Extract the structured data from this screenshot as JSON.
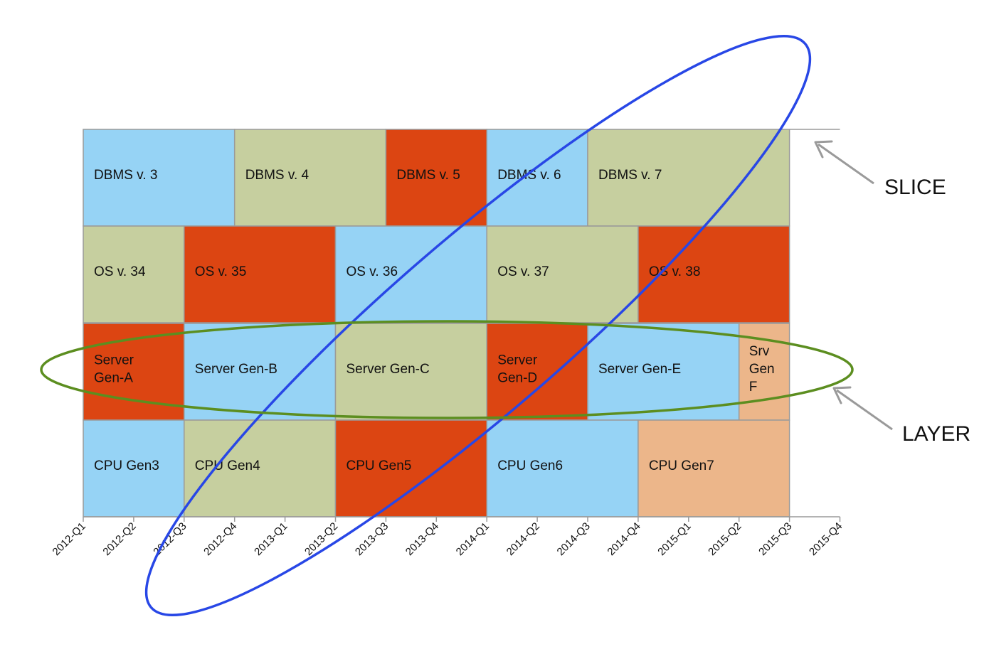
{
  "colors": {
    "blue": "#96d3f5",
    "olive": "#c6cf9f",
    "red": "#dc4512",
    "peach": "#ecb68a",
    "grid": "#9a9a9a",
    "slice_ellipse": "#2847e6",
    "layer_ellipse": "#5c8e20",
    "arrow": "#9a9a9a"
  },
  "chart_data": {
    "type": "table",
    "x_ticks": [
      "2012-Q1",
      "2012-Q2",
      "2012-Q3",
      "2012-Q4",
      "2013-Q1",
      "2013-Q2",
      "2013-Q3",
      "2013-Q4",
      "2014-Q1",
      "2014-Q2",
      "2014-Q3",
      "2014-Q4",
      "2015-Q1",
      "2015-Q2",
      "2015-Q3",
      "2015-Q4"
    ],
    "rows": [
      {
        "name": "DBMS",
        "blocks": [
          {
            "label": [
              "DBMS v. 3"
            ],
            "start": 0,
            "end": 3,
            "color": "blue"
          },
          {
            "label": [
              "DBMS v. 4"
            ],
            "start": 3,
            "end": 6,
            "color": "olive"
          },
          {
            "label": [
              "DBMS v. 5"
            ],
            "start": 6,
            "end": 8,
            "color": "red"
          },
          {
            "label": [
              "DBMS v. 6"
            ],
            "start": 8,
            "end": 10,
            "color": "blue"
          },
          {
            "label": [
              "DBMS v. 7"
            ],
            "start": 10,
            "end": 14,
            "color": "olive"
          }
        ]
      },
      {
        "name": "OS",
        "blocks": [
          {
            "label": [
              "OS v. 34"
            ],
            "start": 0,
            "end": 2,
            "color": "olive"
          },
          {
            "label": [
              "OS v. 35"
            ],
            "start": 2,
            "end": 5,
            "color": "red"
          },
          {
            "label": [
              "OS v. 36"
            ],
            "start": 5,
            "end": 8,
            "color": "blue"
          },
          {
            "label": [
              "OS v. 37"
            ],
            "start": 8,
            "end": 11,
            "color": "olive"
          },
          {
            "label": [
              "OS v. 38"
            ],
            "start": 11,
            "end": 14,
            "color": "red"
          }
        ]
      },
      {
        "name": "Server",
        "blocks": [
          {
            "label": [
              "Server",
              "Gen-A"
            ],
            "start": 0,
            "end": 2,
            "color": "red"
          },
          {
            "label": [
              "Server Gen-B"
            ],
            "start": 2,
            "end": 5,
            "color": "blue"
          },
          {
            "label": [
              "Server Gen-C"
            ],
            "start": 5,
            "end": 8,
            "color": "olive"
          },
          {
            "label": [
              "Server",
              "Gen-D"
            ],
            "start": 8,
            "end": 10,
            "color": "red"
          },
          {
            "label": [
              "Server Gen-E"
            ],
            "start": 10,
            "end": 13,
            "color": "blue"
          },
          {
            "label": [
              "Srv",
              "Gen",
              "F"
            ],
            "start": 13,
            "end": 14,
            "color": "peach"
          }
        ]
      },
      {
        "name": "CPU",
        "blocks": [
          {
            "label": [
              "CPU Gen3"
            ],
            "start": 0,
            "end": 2,
            "color": "blue"
          },
          {
            "label": [
              "CPU Gen4"
            ],
            "start": 2,
            "end": 5,
            "color": "olive"
          },
          {
            "label": [
              "CPU Gen5"
            ],
            "start": 5,
            "end": 8,
            "color": "red"
          },
          {
            "label": [
              "CPU Gen6"
            ],
            "start": 8,
            "end": 11,
            "color": "blue"
          },
          {
            "label": [
              "CPU Gen7"
            ],
            "start": 11,
            "end": 14,
            "color": "peach"
          }
        ]
      }
    ]
  },
  "annotations": {
    "slice_label": "SLICE",
    "layer_label": "LAYER"
  }
}
